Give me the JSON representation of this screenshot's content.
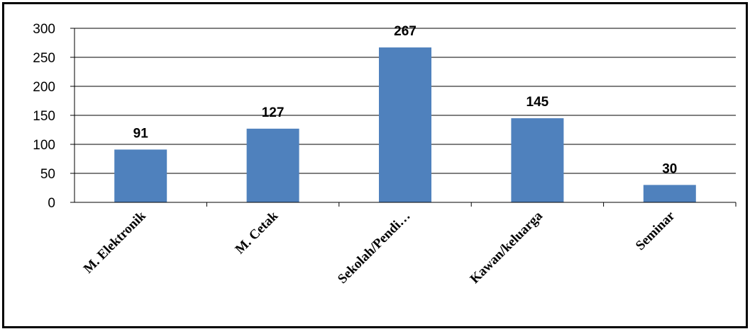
{
  "chart_data": {
    "type": "bar",
    "categories": [
      "M. Elektronik",
      "M. Cetak",
      "Sekolah/Pendi…",
      "Kawan/keluarga",
      "Seminar"
    ],
    "values": [
      91,
      127,
      267,
      145,
      30
    ],
    "data_labels": [
      "91",
      "127",
      "267",
      "145",
      "30"
    ],
    "yticks": [
      "0",
      "50",
      "100",
      "150",
      "200",
      "250",
      "300"
    ],
    "ylim": [
      0,
      300
    ],
    "grid": true,
    "legend": "none",
    "bar_color": "#4F81BD"
  }
}
